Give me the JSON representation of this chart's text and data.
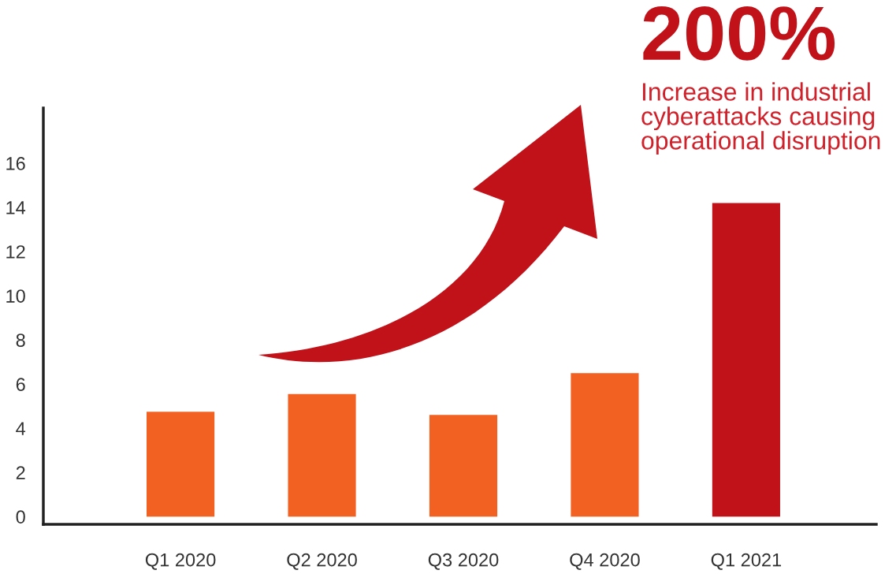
{
  "chart_data": {
    "type": "bar",
    "categories": [
      "Q1 2020",
      "Q2 2020",
      "Q3 2020",
      "Q4 2020",
      "Q1 2021"
    ],
    "values": [
      4.75,
      5.55,
      4.6,
      6.5,
      14.2
    ],
    "colors": [
      "#f26122",
      "#f26122",
      "#f26122",
      "#f26122",
      "#c1121a"
    ],
    "ylim": [
      -0.35,
      18.5
    ],
    "yticks": [
      0,
      2,
      4,
      6,
      8,
      10,
      12,
      14,
      16
    ],
    "grid": false,
    "annotations": [
      "200%",
      "Increase in industrial\ncyberattacks causing\noperational disruption"
    ]
  }
}
